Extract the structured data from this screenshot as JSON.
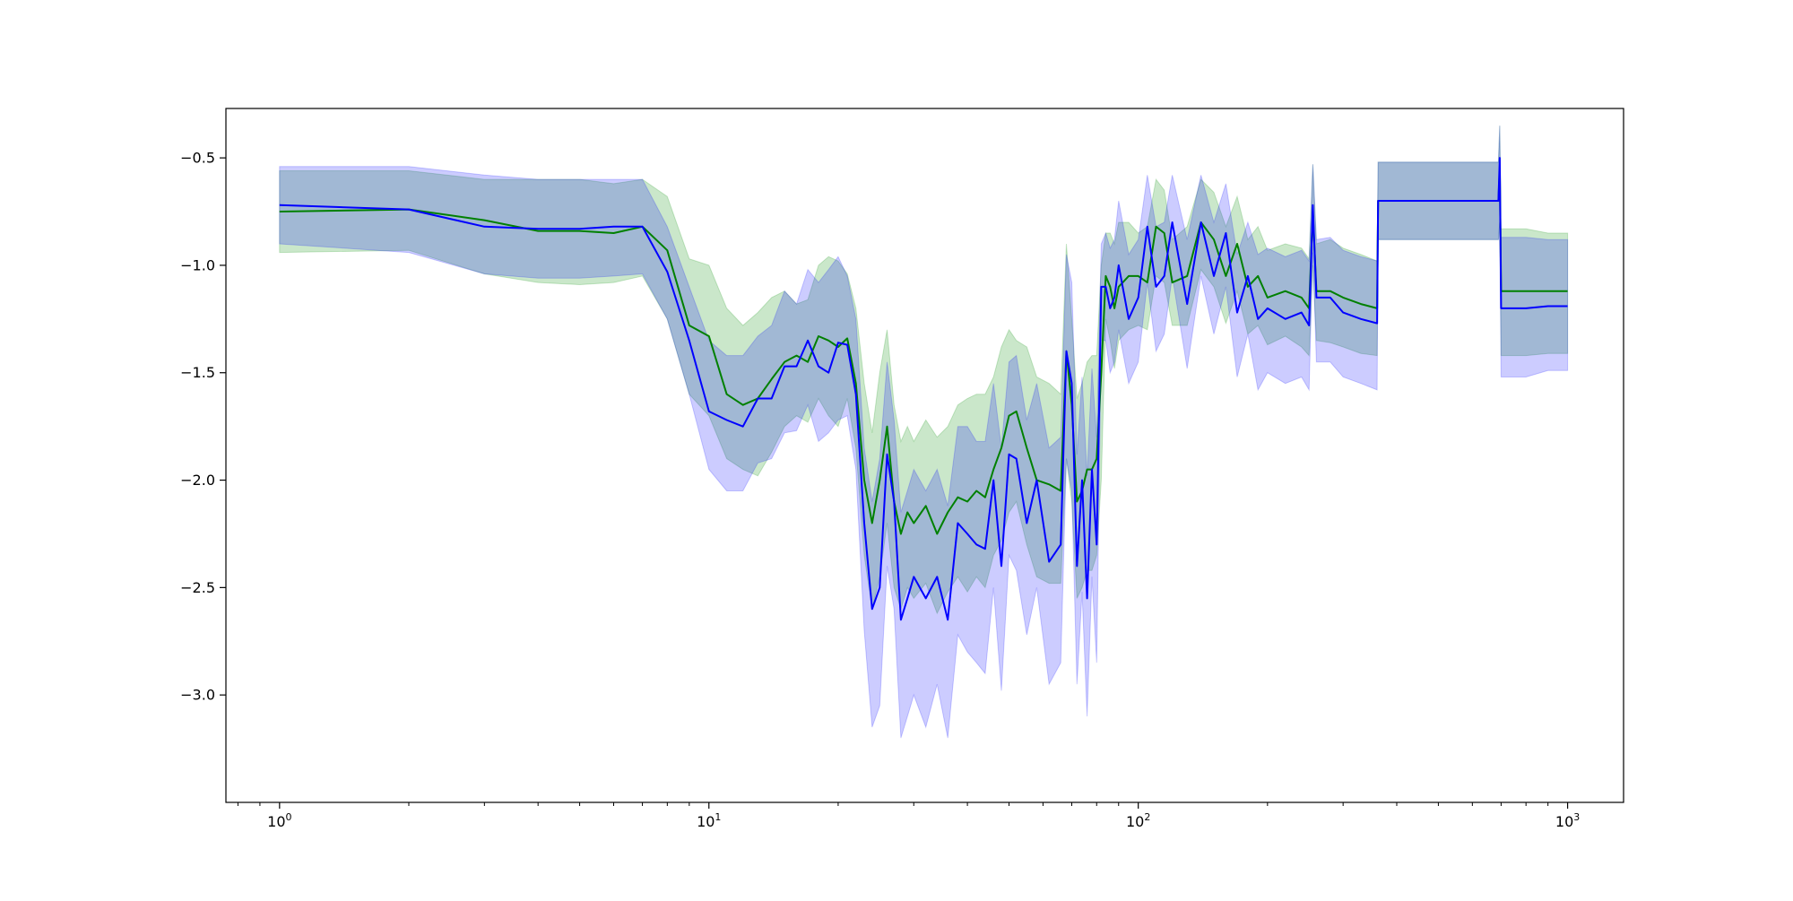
{
  "chart_data": {
    "type": "line",
    "xscale": "log",
    "xlim": [
      0.75,
      1350
    ],
    "ylim": [
      -3.5,
      -0.27
    ],
    "grid": false,
    "legend": "none",
    "x_ticks": [
      {
        "value": 1,
        "base": "10",
        "exp": "0"
      },
      {
        "value": 10,
        "base": "10",
        "exp": "1"
      },
      {
        "value": 100,
        "base": "10",
        "exp": "2"
      },
      {
        "value": 1000,
        "base": "10",
        "exp": "3"
      }
    ],
    "y_ticks": [
      {
        "value": -0.5,
        "label": "−0.5"
      },
      {
        "value": -1.0,
        "label": "−1.0"
      },
      {
        "value": -1.5,
        "label": "−1.5"
      },
      {
        "value": -2.0,
        "label": "−2.0"
      },
      {
        "value": -2.5,
        "label": "−2.5"
      },
      {
        "value": -3.0,
        "label": "−3.0"
      }
    ],
    "series": [
      {
        "color": "#008000",
        "band_color": "#2ca02c",
        "band_opacity": 0.25,
        "x": [
          1,
          2,
          3,
          4,
          5,
          6,
          7,
          8,
          9,
          10,
          11,
          12,
          13,
          14,
          15,
          16,
          17,
          18,
          19,
          20,
          21,
          22,
          23,
          24,
          25,
          26,
          27,
          28,
          29,
          30,
          32,
          34,
          36,
          38,
          40,
          42,
          44,
          46,
          48,
          50,
          52,
          55,
          58,
          62,
          66,
          68,
          70,
          72,
          74,
          76,
          78,
          80,
          82,
          84,
          86,
          88,
          90,
          95,
          100,
          105,
          110,
          115,
          120,
          130,
          140,
          150,
          160,
          170,
          180,
          190,
          200,
          220,
          240,
          250,
          255,
          260,
          280,
          300,
          330,
          360,
          362,
          450,
          550,
          650,
          690,
          695,
          700,
          800,
          900,
          1000
        ],
        "y": [
          -0.75,
          -0.74,
          -0.79,
          -0.84,
          -0.84,
          -0.85,
          -0.82,
          -0.93,
          -1.28,
          -1.33,
          -1.6,
          -1.65,
          -1.62,
          -1.53,
          -1.45,
          -1.42,
          -1.45,
          -1.33,
          -1.35,
          -1.38,
          -1.34,
          -1.55,
          -2.0,
          -2.2,
          -2.0,
          -1.75,
          -2.1,
          -2.25,
          -2.15,
          -2.2,
          -2.12,
          -2.25,
          -2.15,
          -2.08,
          -2.1,
          -2.05,
          -2.08,
          -1.95,
          -1.85,
          -1.7,
          -1.68,
          -1.85,
          -2.0,
          -2.02,
          -2.05,
          -1.4,
          -1.65,
          -2.1,
          -2.05,
          -1.95,
          -1.95,
          -1.9,
          -1.5,
          -1.05,
          -1.1,
          -1.2,
          -1.1,
          -1.05,
          -1.05,
          -1.08,
          -0.82,
          -0.85,
          -1.08,
          -1.05,
          -0.8,
          -0.88,
          -1.05,
          -0.9,
          -1.1,
          -1.05,
          -1.15,
          -1.12,
          -1.15,
          -1.2,
          -0.75,
          -1.12,
          -1.12,
          -1.15,
          -1.18,
          -1.2,
          -0.7,
          -0.7,
          -0.7,
          -0.7,
          -0.7,
          -0.55,
          -1.12,
          -1.12,
          -1.12,
          -1.12
        ],
        "upper": [
          -0.56,
          -0.56,
          -0.6,
          -0.6,
          -0.6,
          -0.62,
          -0.6,
          -0.68,
          -0.97,
          -1.0,
          -1.2,
          -1.28,
          -1.22,
          -1.15,
          -1.12,
          -1.18,
          -1.16,
          -1.0,
          -0.96,
          -0.98,
          -1.04,
          -1.2,
          -1.55,
          -1.78,
          -1.5,
          -1.3,
          -1.65,
          -1.82,
          -1.75,
          -1.82,
          -1.72,
          -1.8,
          -1.75,
          -1.65,
          -1.62,
          -1.6,
          -1.6,
          -1.52,
          -1.38,
          -1.3,
          -1.35,
          -1.38,
          -1.52,
          -1.55,
          -1.6,
          -0.9,
          -1.25,
          -1.62,
          -1.55,
          -1.45,
          -1.42,
          -1.42,
          -1.0,
          -0.85,
          -0.85,
          -0.9,
          -0.8,
          -0.8,
          -0.85,
          -0.82,
          -0.6,
          -0.65,
          -0.88,
          -0.82,
          -0.6,
          -0.66,
          -0.82,
          -0.68,
          -0.88,
          -0.82,
          -0.93,
          -0.9,
          -0.92,
          -0.97,
          -0.53,
          -0.9,
          -0.88,
          -0.92,
          -0.95,
          -0.98,
          -0.52,
          -0.52,
          -0.52,
          -0.52,
          -0.52,
          -0.35,
          -0.83,
          -0.83,
          -0.85,
          -0.85
        ],
        "lower": [
          -0.94,
          -0.93,
          -1.04,
          -1.08,
          -1.09,
          -1.08,
          -1.05,
          -1.25,
          -1.6,
          -1.7,
          -1.9,
          -1.95,
          -1.98,
          -1.87,
          -1.75,
          -1.7,
          -1.73,
          -1.62,
          -1.7,
          -1.75,
          -1.62,
          -1.85,
          -2.35,
          -2.6,
          -2.45,
          -2.2,
          -2.5,
          -2.6,
          -2.5,
          -2.55,
          -2.48,
          -2.62,
          -2.52,
          -2.45,
          -2.52,
          -2.45,
          -2.5,
          -2.35,
          -2.28,
          -2.15,
          -2.1,
          -2.3,
          -2.45,
          -2.48,
          -2.48,
          -1.9,
          -2.1,
          -2.55,
          -2.5,
          -2.42,
          -2.42,
          -2.35,
          -2.0,
          -1.25,
          -1.35,
          -1.48,
          -1.35,
          -1.3,
          -1.28,
          -1.3,
          -1.05,
          -1.08,
          -1.28,
          -1.28,
          -1.02,
          -1.1,
          -1.27,
          -1.12,
          -1.32,
          -1.28,
          -1.37,
          -1.33,
          -1.38,
          -1.42,
          -1.0,
          -1.35,
          -1.36,
          -1.38,
          -1.41,
          -1.42,
          -0.88,
          -0.88,
          -0.88,
          -0.88,
          -0.88,
          -0.8,
          -1.42,
          -1.42,
          -1.41,
          -1.41
        ]
      },
      {
        "color": "#0000ff",
        "band_color": "#0000ff",
        "band_opacity": 0.2,
        "x": [
          1,
          2,
          3,
          4,
          5,
          6,
          7,
          8,
          9,
          10,
          11,
          12,
          13,
          14,
          15,
          16,
          17,
          18,
          19,
          20,
          21,
          22,
          23,
          24,
          25,
          26,
          27,
          28,
          29,
          30,
          32,
          34,
          36,
          38,
          40,
          42,
          44,
          46,
          48,
          50,
          52,
          55,
          58,
          62,
          66,
          68,
          70,
          72,
          74,
          76,
          78,
          80,
          82,
          84,
          86,
          88,
          90,
          95,
          100,
          105,
          110,
          115,
          120,
          130,
          140,
          150,
          160,
          170,
          180,
          190,
          200,
          220,
          240,
          250,
          255,
          260,
          280,
          300,
          330,
          360,
          362,
          450,
          550,
          650,
          690,
          695,
          700,
          800,
          900,
          1000
        ],
        "y": [
          -0.72,
          -0.74,
          -0.82,
          -0.83,
          -0.83,
          -0.82,
          -0.82,
          -1.03,
          -1.35,
          -1.68,
          -1.72,
          -1.75,
          -1.62,
          -1.62,
          -1.47,
          -1.47,
          -1.35,
          -1.47,
          -1.5,
          -1.36,
          -1.37,
          -1.6,
          -2.2,
          -2.6,
          -2.5,
          -1.88,
          -2.1,
          -2.65,
          -2.55,
          -2.45,
          -2.55,
          -2.45,
          -2.65,
          -2.2,
          -2.25,
          -2.3,
          -2.32,
          -2.0,
          -2.4,
          -1.88,
          -1.9,
          -2.2,
          -2.0,
          -2.38,
          -2.3,
          -1.4,
          -1.55,
          -2.4,
          -2.0,
          -2.55,
          -1.95,
          -2.3,
          -1.1,
          -1.1,
          -1.2,
          -1.15,
          -1.0,
          -1.25,
          -1.15,
          -0.82,
          -1.1,
          -1.05,
          -0.8,
          -1.18,
          -0.8,
          -1.05,
          -0.85,
          -1.22,
          -1.05,
          -1.25,
          -1.2,
          -1.25,
          -1.22,
          -1.28,
          -0.72,
          -1.15,
          -1.15,
          -1.22,
          -1.25,
          -1.27,
          -0.7,
          -0.7,
          -0.7,
          -0.7,
          -0.7,
          -0.5,
          -1.2,
          -1.2,
          -1.19,
          -1.19
        ],
        "upper": [
          -0.54,
          -0.54,
          -0.58,
          -0.6,
          -0.6,
          -0.6,
          -0.6,
          -0.82,
          -1.1,
          -1.35,
          -1.42,
          -1.42,
          -1.33,
          -1.28,
          -1.12,
          -1.18,
          -1.02,
          -1.08,
          -1.02,
          -0.96,
          -1.05,
          -1.25,
          -1.85,
          -2.1,
          -1.9,
          -1.45,
          -1.72,
          -2.15,
          -2.05,
          -1.95,
          -2.05,
          -1.95,
          -2.12,
          -1.75,
          -1.75,
          -1.82,
          -1.82,
          -1.55,
          -1.85,
          -1.45,
          -1.42,
          -1.72,
          -1.55,
          -1.85,
          -1.8,
          -0.95,
          -1.08,
          -1.88,
          -1.52,
          -1.98,
          -1.48,
          -1.8,
          -0.9,
          -0.85,
          -0.92,
          -0.88,
          -0.7,
          -0.95,
          -0.88,
          -0.58,
          -0.82,
          -0.8,
          -0.58,
          -0.88,
          -0.58,
          -0.8,
          -0.62,
          -0.95,
          -0.8,
          -0.95,
          -0.92,
          -0.96,
          -0.93,
          -0.98,
          -0.53,
          -0.88,
          -0.87,
          -0.93,
          -0.96,
          -0.98,
          -0.52,
          -0.52,
          -0.52,
          -0.52,
          -0.52,
          -0.35,
          -0.87,
          -0.87,
          -0.88,
          -0.88
        ],
        "lower": [
          -0.9,
          -0.94,
          -1.04,
          -1.06,
          -1.06,
          -1.05,
          -1.04,
          -1.25,
          -1.6,
          -1.95,
          -2.05,
          -2.05,
          -1.92,
          -1.9,
          -1.78,
          -1.77,
          -1.65,
          -1.82,
          -1.78,
          -1.72,
          -1.7,
          -1.95,
          -2.7,
          -3.15,
          -3.05,
          -2.4,
          -2.6,
          -3.2,
          -3.1,
          -3.0,
          -3.15,
          -2.95,
          -3.2,
          -2.72,
          -2.8,
          -2.85,
          -2.9,
          -2.5,
          -2.98,
          -2.35,
          -2.42,
          -2.72,
          -2.5,
          -2.95,
          -2.85,
          -1.9,
          -2.05,
          -2.95,
          -2.52,
          -3.1,
          -2.45,
          -2.85,
          -1.35,
          -1.35,
          -1.5,
          -1.45,
          -1.3,
          -1.55,
          -1.45,
          -1.08,
          -1.4,
          -1.32,
          -1.05,
          -1.48,
          -1.05,
          -1.32,
          -1.1,
          -1.52,
          -1.32,
          -1.58,
          -1.5,
          -1.55,
          -1.52,
          -1.58,
          -0.94,
          -1.45,
          -1.45,
          -1.52,
          -1.55,
          -1.58,
          -0.88,
          -0.88,
          -0.88,
          -0.88,
          -0.88,
          -0.8,
          -1.52,
          -1.52,
          -1.49,
          -1.49
        ]
      }
    ]
  }
}
